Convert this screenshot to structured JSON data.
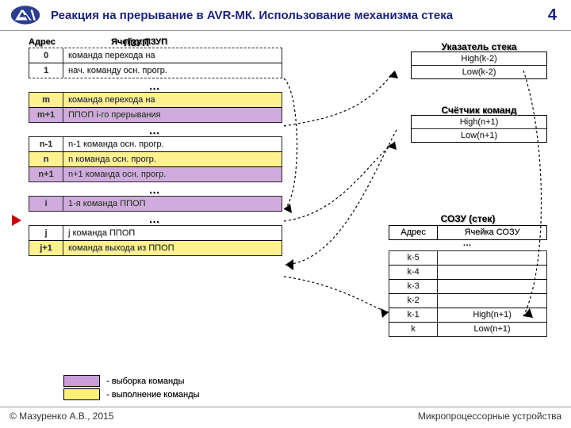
{
  "header": {
    "title": "Реакция на прерывание в  AVR-МК. Использование механизма стека",
    "page": "4"
  },
  "footer": {
    "left": "© Мазуренко А.В., 2015",
    "right": "Микропроцессорные устройства"
  },
  "colors": {
    "yellow": "#ffef7a",
    "purple": "#c89dd8",
    "navy": "#1a237e"
  },
  "mem": {
    "title": "ПЗУП",
    "col_addr": "Адрес",
    "col_cmd": "Ячейка ПЗУП",
    "rows": [
      {
        "addr": "0",
        "cmd": "команда перехода на",
        "dt": true
      },
      {
        "addr": "1",
        "cmd": "нач. команду осн. прогр.",
        "db": true
      },
      {
        "addr": "m",
        "cmd": "команда перехода на",
        "hl": "yellow",
        "gapBefore": true
      },
      {
        "addr": "m+1",
        "cmd": "ППОП i-го прерывания",
        "hl": "purple"
      },
      {
        "addr": "n-1",
        "cmd": "n-1 команда осн. прогр.",
        "gapBefore": true
      },
      {
        "addr": "n",
        "cmd": "n команда осн. прогр.",
        "hl": "yellow"
      },
      {
        "addr": "n+1",
        "cmd": "n+1 команда осн. прогр.",
        "hl": "purple"
      },
      {
        "addr": "i",
        "cmd": "1-я команда ППОП",
        "hl": "purple",
        "gapBefore": true
      },
      {
        "addr": "j",
        "cmd": "j команда ППОП",
        "gapBefore": true
      },
      {
        "addr": "j+1",
        "cmd": "команда выхода из ППОП",
        "hl": "yellow"
      }
    ]
  },
  "sp": {
    "title": "Указатель стека",
    "rows": [
      {
        "l": "High(k-2)",
        "r": ""
      },
      {
        "l": "Low(k-2)",
        "r": ""
      }
    ]
  },
  "cc": {
    "title": "Счётчик команд",
    "rows": [
      {
        "l": "High(n+1)",
        "r": ""
      },
      {
        "l": "Low(n+1)",
        "r": ""
      }
    ]
  },
  "sozu": {
    "title": "СОЗУ (стек)",
    "head": {
      "c1": "Адрес",
      "c2": "Ячейка СОЗУ"
    },
    "rows": [
      {
        "c1": "k-5",
        "c2": ""
      },
      {
        "c1": "k-4",
        "c2": ""
      },
      {
        "c1": "k-3",
        "c2": ""
      },
      {
        "c1": "k-2",
        "c2": ""
      },
      {
        "c1": "k-1",
        "c2": "High(n+1)"
      },
      {
        "c1": "k",
        "c2": "Low(n+1)"
      }
    ]
  },
  "legend": {
    "fetch": "- выборка команды",
    "exec": "- выполнение команды"
  },
  "marker_row": 5
}
